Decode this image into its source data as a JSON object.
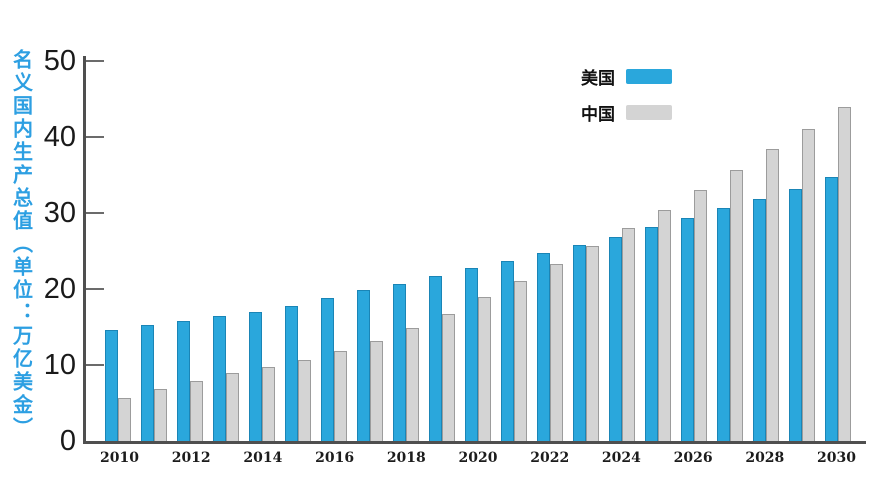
{
  "title": {
    "y_axis": "名义国内生产总值（单位：万亿美金）"
  },
  "legend": [
    {
      "label": "美国",
      "color": "#2aa7dc"
    },
    {
      "label": "中国",
      "color": "#d4d4d4"
    }
  ],
  "axes": {
    "y_ticks": [
      0,
      10,
      20,
      30,
      40,
      50
    ],
    "x_tick_labels": [
      "2010",
      "2012",
      "2014",
      "2016",
      "2018",
      "2020",
      "2022",
      "2024",
      "2026",
      "2028",
      "2030"
    ]
  },
  "colors": {
    "us_bar": "#2aa7dc",
    "cn_bar": "#d4d4d4",
    "axis": "#4f4f4f",
    "title_text": "#2d9fe2"
  },
  "chart_data": {
    "type": "bar",
    "title": "",
    "xlabel": "",
    "ylabel": "名义国内生产总值（单位：万亿美金）",
    "ylim": [
      0,
      50
    ],
    "grid": false,
    "legend_position": "top-right-inside",
    "categories": [
      2010,
      2011,
      2012,
      2013,
      2014,
      2015,
      2016,
      2017,
      2018,
      2019,
      2020,
      2021,
      2022,
      2023,
      2024,
      2025,
      2026,
      2027,
      2028,
      2029,
      2030
    ],
    "series": [
      {
        "name": "美国",
        "color": "#2aa7dc",
        "values": [
          15.0,
          15.6,
          16.2,
          16.8,
          17.4,
          18.2,
          19.2,
          20.2,
          21.1,
          22.1,
          23.1,
          24.1,
          25.1,
          26.2,
          27.3,
          28.6,
          29.7,
          31.0,
          32.2,
          33.6,
          35.1
        ]
      },
      {
        "name": "中国",
        "color": "#d4d4d4",
        "values": [
          6.0,
          7.3,
          8.3,
          9.3,
          10.1,
          11.1,
          12.3,
          13.6,
          15.2,
          17.1,
          19.3,
          21.5,
          23.7,
          26.0,
          28.4,
          30.8,
          33.4,
          36.0,
          38.8,
          41.5,
          44.3
        ]
      }
    ]
  }
}
